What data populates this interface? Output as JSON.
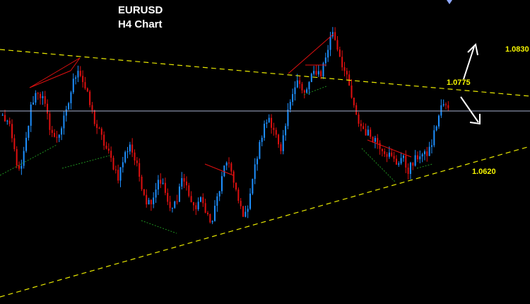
{
  "chart_data": {
    "type": "line",
    "title": "EURUSD",
    "subtitle": "H4 Chart",
    "annotations": [
      "1.0830",
      "1.0775",
      "1.0620"
    ],
    "trendlines": [
      {
        "name": "upper-resistance",
        "style": "dashed",
        "color": "#e8e800"
      },
      {
        "name": "lower-support",
        "style": "dashed",
        "color": "#e8e800"
      },
      {
        "name": "horizontal-level",
        "style": "solid",
        "color": "#a8b0d0"
      }
    ],
    "arrows": [
      {
        "direction": "up",
        "color": "#ffffff"
      },
      {
        "direction": "down",
        "color": "#ffffff"
      }
    ],
    "colors": {
      "background": "#000000",
      "bull_candle": "#1e90ff",
      "bear_candle": "#e01010",
      "pattern_red": "#e01010",
      "pattern_green": "#1f8f1f"
    },
    "price_path": [
      1.07,
      1.069,
      1.065,
      1.061,
      1.066,
      1.072,
      1.074,
      1.0725,
      1.069,
      1.0665,
      1.068,
      1.0705,
      1.0745,
      1.0775,
      1.075,
      1.072,
      1.069,
      1.067,
      1.065,
      1.063,
      1.061,
      1.064,
      1.066,
      1.063,
      1.06,
      1.057,
      1.058,
      1.061,
      1.059,
      1.0555,
      1.0575,
      1.061,
      1.059,
      1.056,
      1.0575,
      1.0565,
      1.0535,
      1.0575,
      1.061,
      1.064,
      1.0595,
      1.0565,
      1.055,
      1.06,
      1.064,
      1.068,
      1.07,
      1.068,
      1.064,
      1.069,
      1.074,
      1.0755,
      1.073,
      1.075,
      1.077,
      1.0765,
      1.0795,
      1.083,
      1.08,
      1.077,
      1.074,
      1.07,
      1.0685,
      1.0675,
      1.067,
      1.066,
      1.065,
      1.064,
      1.063,
      1.064,
      1.062,
      1.063,
      1.0645,
      1.064,
      1.0655,
      1.069,
      1.072,
      1.071
    ]
  }
}
